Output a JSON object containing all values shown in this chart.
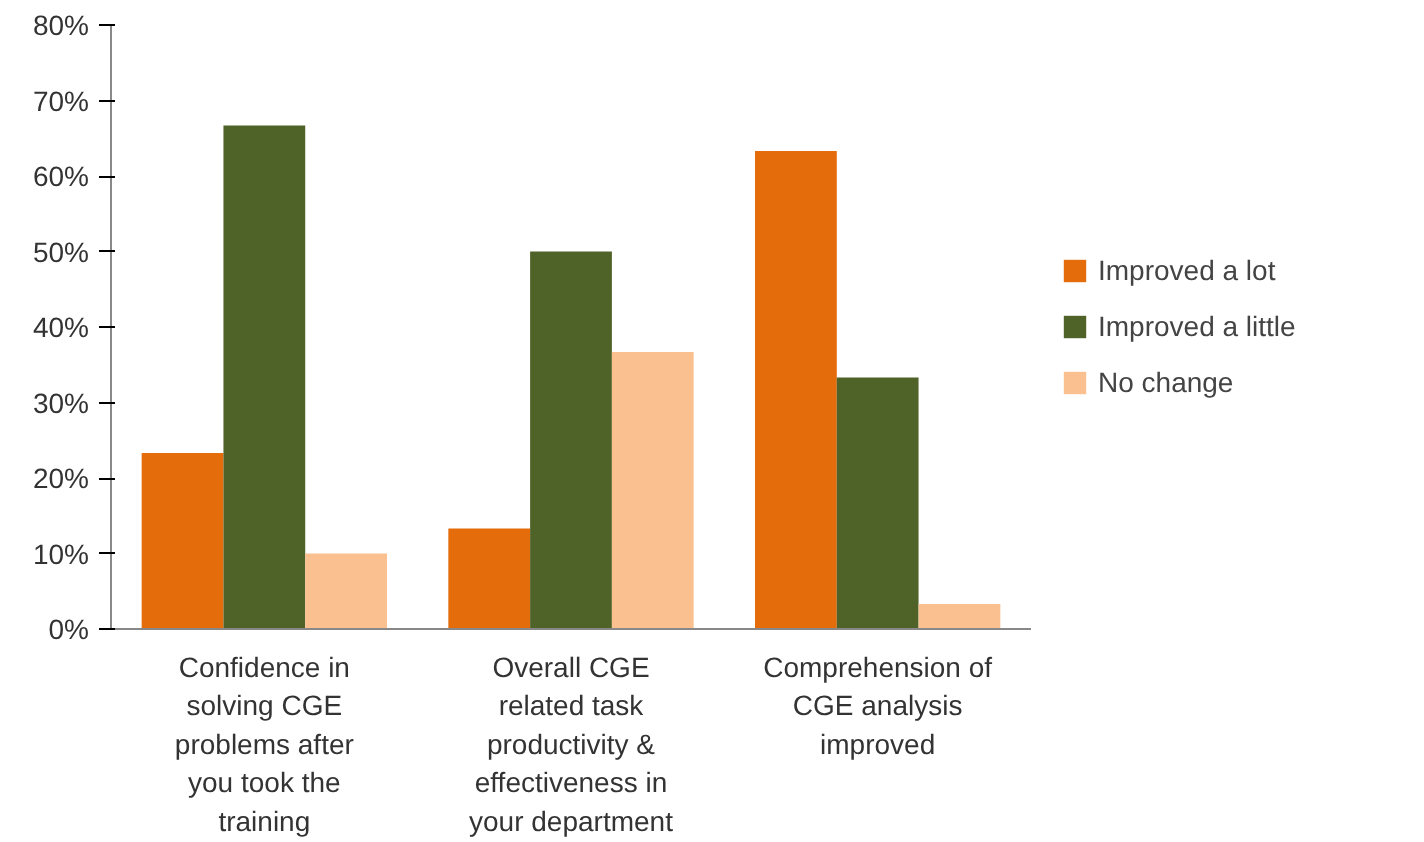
{
  "chart_data": {
    "type": "bar",
    "categories": [
      "Confidence in solving CGE problems after you took the training",
      "Overall CGE related task productivity & effectiveness in your department",
      "Comprehension of CGE analysis improved"
    ],
    "series": [
      {
        "name": "Improved a lot",
        "color": "#e46c0a",
        "values": [
          23.3,
          13.3,
          63.3
        ]
      },
      {
        "name": "Improved a little",
        "color": "#4f6228",
        "values": [
          66.7,
          50,
          33.3
        ]
      },
      {
        "name": "No change",
        "color": "#fac090",
        "values": [
          10,
          36.7,
          3.3
        ]
      }
    ],
    "ylim": [
      0,
      80
    ],
    "yticks": [
      {
        "value": 0,
        "label": "0%"
      },
      {
        "value": 10,
        "label": "10%"
      },
      {
        "value": 20,
        "label": "20%"
      },
      {
        "value": 30,
        "label": "30%"
      },
      {
        "value": 40,
        "label": "40%"
      },
      {
        "value": 50,
        "label": "50%"
      },
      {
        "value": 60,
        "label": "60%"
      },
      {
        "value": 70,
        "label": "70%"
      },
      {
        "value": 80,
        "label": "80%"
      }
    ],
    "grid": false,
    "legend": "right"
  }
}
